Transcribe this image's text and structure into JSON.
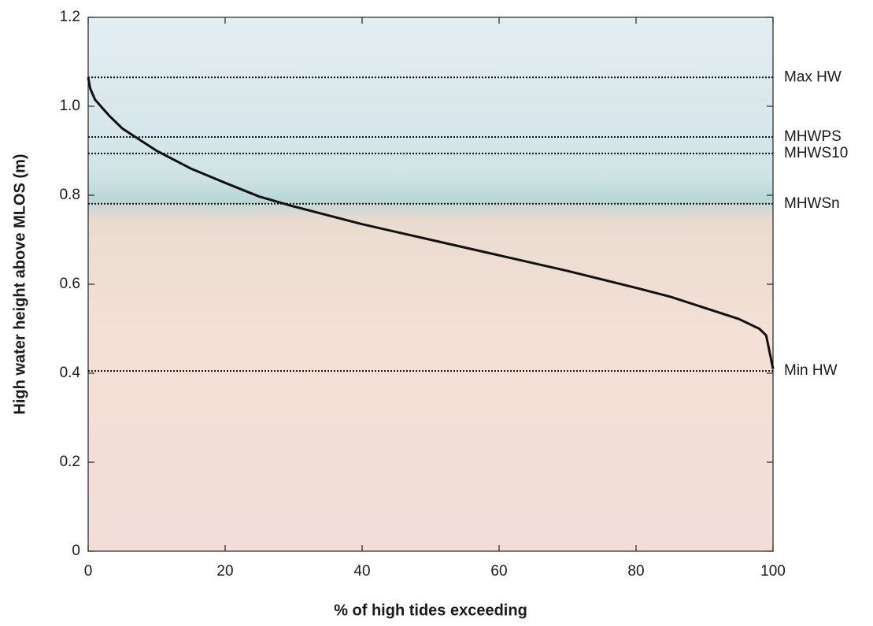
{
  "chart_data": {
    "type": "line",
    "x_label": "% of high tides exceeding",
    "y_label": "High water height above MLOS (m)",
    "x": [
      0,
      0.3,
      1,
      3,
      5,
      10,
      15,
      20,
      25,
      30,
      40,
      50,
      60,
      70,
      80,
      85,
      90,
      95,
      98,
      99,
      100
    ],
    "values": [
      1.065,
      1.04,
      1.015,
      0.98,
      0.95,
      0.9,
      0.86,
      0.828,
      0.797,
      0.775,
      0.735,
      0.7,
      0.665,
      0.63,
      0.592,
      0.572,
      0.547,
      0.522,
      0.5,
      0.485,
      0.41
    ],
    "color": "#111111",
    "reference_lines": [
      {
        "label": "Max HW",
        "value": 1.065
      },
      {
        "label": "MHWPS",
        "value": 0.931
      },
      {
        "label": "MHWS10",
        "value": 0.894
      },
      {
        "label": "MHWSn",
        "value": 0.781
      },
      {
        "label": "Min HW",
        "value": 0.405
      }
    ],
    "xlim": [
      0,
      100
    ],
    "xticks": [
      0,
      20,
      40,
      60,
      80,
      100
    ],
    "ylim": [
      0,
      1.2
    ],
    "yticks": [
      0,
      0.2,
      0.4,
      0.6,
      0.8,
      {
        "value": 1,
        "label": "1.0"
      },
      1.2
    ]
  }
}
